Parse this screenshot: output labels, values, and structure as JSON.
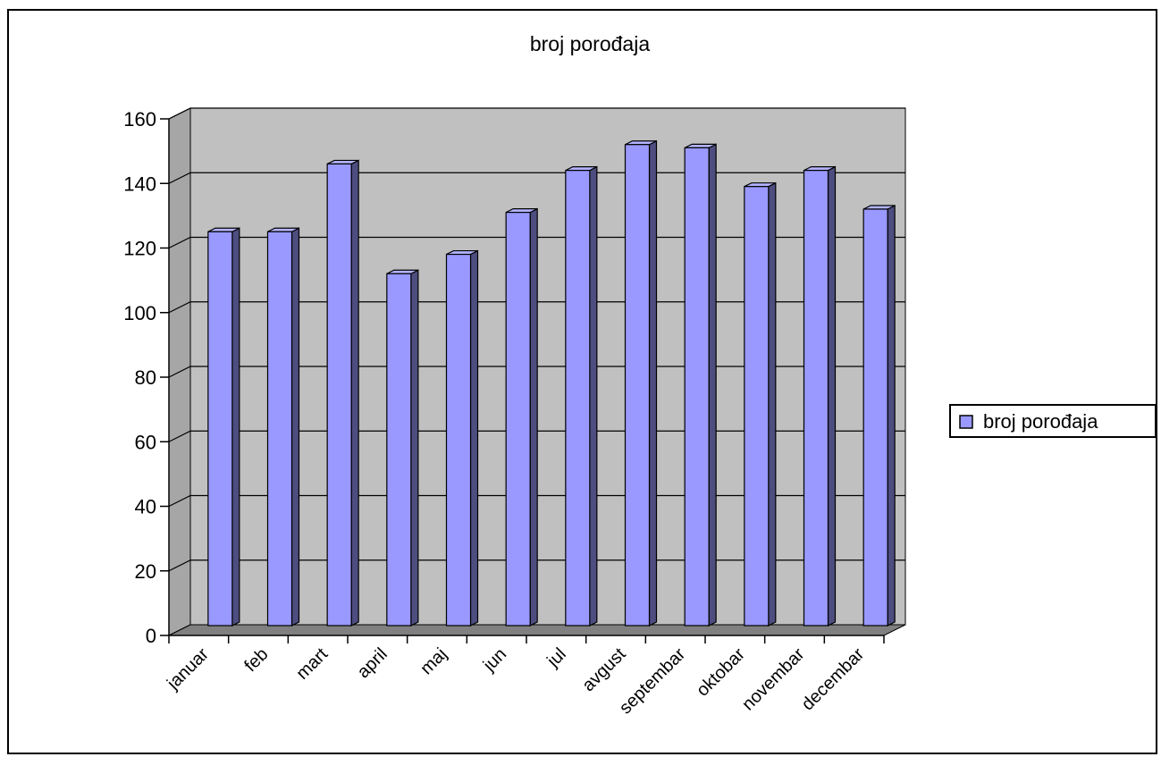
{
  "chart_data": {
    "type": "bar",
    "title": "broj porođaja",
    "xlabel": "",
    "ylabel": "",
    "categories": [
      "januar",
      "feb",
      "mart",
      "april",
      "maj",
      "jun",
      "jul",
      "avgust",
      "septembar",
      "oktobar",
      "novembar",
      "decembar"
    ],
    "series": [
      {
        "name": "broj porođaja",
        "values": [
          122,
          122,
          143,
          109,
          115,
          128,
          141,
          149,
          148,
          136,
          141,
          129
        ]
      }
    ],
    "ylim": [
      0,
      160
    ],
    "yticks": [
      "0",
      "20",
      "40",
      "60",
      "80",
      "100",
      "120",
      "140",
      "160"
    ],
    "grid": true,
    "legend_position": "right",
    "three_d": true,
    "colors": {
      "bar_front": "#9999ff",
      "bar_top": "#b3b3ff",
      "bar_side": "#4d4d80",
      "wall": "#c0c0c0",
      "floor": "#808080",
      "side_wall": "#a6a6a6"
    }
  }
}
